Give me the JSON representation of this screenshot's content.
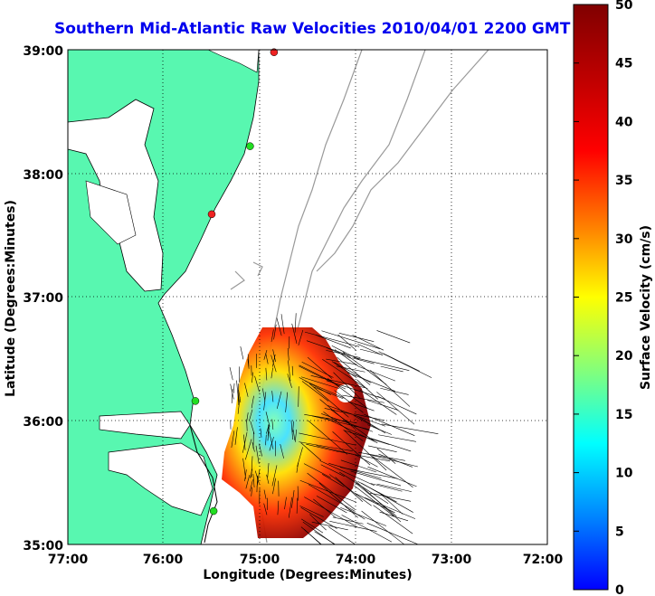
{
  "title": "Southern Mid-Atlantic Raw Velocities 2010/04/01 2200 GMT",
  "x_axis_label": "Longitude (Degrees:Minutes)",
  "y_axis_label": "Latitude (Degrees:Minutes)",
  "x_ticks": [
    "77:00",
    "76:00",
    "75:00",
    "74:00",
    "73:00",
    "72:00"
  ],
  "y_ticks": [
    "39:00",
    "38:00",
    "37:00",
    "36:00",
    "35:00"
  ],
  "colorbar": {
    "label": "Surface Velocity (cm/s)",
    "ticks": [
      "0",
      "5",
      "10",
      "15",
      "20",
      "25",
      "30",
      "35",
      "40",
      "45",
      "50"
    ],
    "range": [
      0,
      50
    ]
  },
  "colors": {
    "land": "#58f7b0",
    "coastline": "#000000",
    "bathymetry": "#999999",
    "grid": "#000000",
    "title": "#0000ee",
    "station_active": "#22dd22",
    "station_inactive": "#ee2222"
  },
  "map_extent": {
    "lon": [
      -77,
      -72
    ],
    "lat": [
      35,
      39
    ]
  },
  "stations": [
    {
      "status": "inactive",
      "lon": -74.85,
      "lat": 38.98
    },
    {
      "status": "active",
      "lon": -75.1,
      "lat": 38.22
    },
    {
      "status": "inactive",
      "lon": -75.5,
      "lat": 37.67
    },
    {
      "status": "active",
      "lon": -75.67,
      "lat": 36.16
    },
    {
      "status": "active",
      "lon": -75.48,
      "lat": 35.27
    }
  ]
}
